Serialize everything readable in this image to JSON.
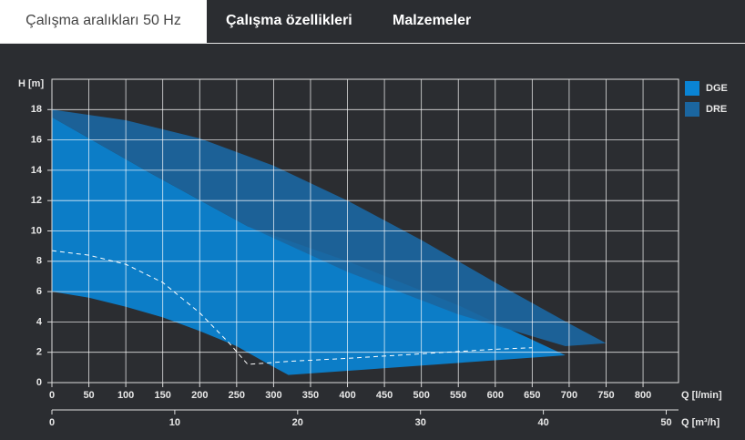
{
  "tabs": [
    {
      "label": "Çalışma aralıkları 50 Hz",
      "active": true
    },
    {
      "label": "Çalışma özellikleri",
      "active": false
    },
    {
      "label": "Malzemeler",
      "active": false
    }
  ],
  "chart_data": {
    "type": "area",
    "y_label": "H [m]",
    "x_label": "Q [l/min]",
    "x2_label": "Q [m³/h]",
    "xlim": [
      0,
      848
    ],
    "xticks": [
      0,
      50,
      100,
      150,
      200,
      250,
      300,
      350,
      400,
      450,
      500,
      550,
      600,
      650,
      700,
      750,
      800
    ],
    "x2lim": [
      0,
      51
    ],
    "x2ticks": [
      0,
      10,
      20,
      30,
      40,
      50
    ],
    "ylim": [
      0,
      20
    ],
    "yticks": [
      0,
      2,
      4,
      6,
      8,
      10,
      12,
      14,
      16,
      18
    ],
    "grid": true,
    "legend": "top-right",
    "series": [
      {
        "name": "DGE",
        "color": "#0a84d4",
        "x": [
          0,
          130,
          265,
          400,
          550,
          695,
          320,
          290,
          250,
          200,
          150,
          100,
          50,
          0
        ],
        "values": [
          17.5,
          13.9,
          10.3,
          8.0,
          5.1,
          1.8,
          0.5,
          1.3,
          2.4,
          3.4,
          4.3,
          5.0,
          5.6,
          6.0
        ]
      },
      {
        "name": "DRE",
        "color": "#1b66a0",
        "x": [
          0,
          100,
          200,
          300,
          400,
          500,
          600,
          700,
          750,
          695,
          550,
          400,
          265,
          130,
          0
        ],
        "values": [
          18.0,
          17.3,
          16.1,
          14.3,
          12.0,
          9.4,
          6.6,
          3.9,
          2.6,
          2.4,
          4.5,
          7.3,
          10.3,
          13.9,
          17.5
        ]
      },
      {
        "color": "#ffffff",
        "style": "dashed",
        "x": [
          0,
          50,
          100,
          150,
          200,
          240,
          265,
          320,
          400,
          500,
          600,
          650
        ],
        "values": [
          8.7,
          8.4,
          7.8,
          6.6,
          4.6,
          2.6,
          1.2,
          1.4,
          1.6,
          1.9,
          2.2,
          2.3
        ]
      }
    ]
  }
}
